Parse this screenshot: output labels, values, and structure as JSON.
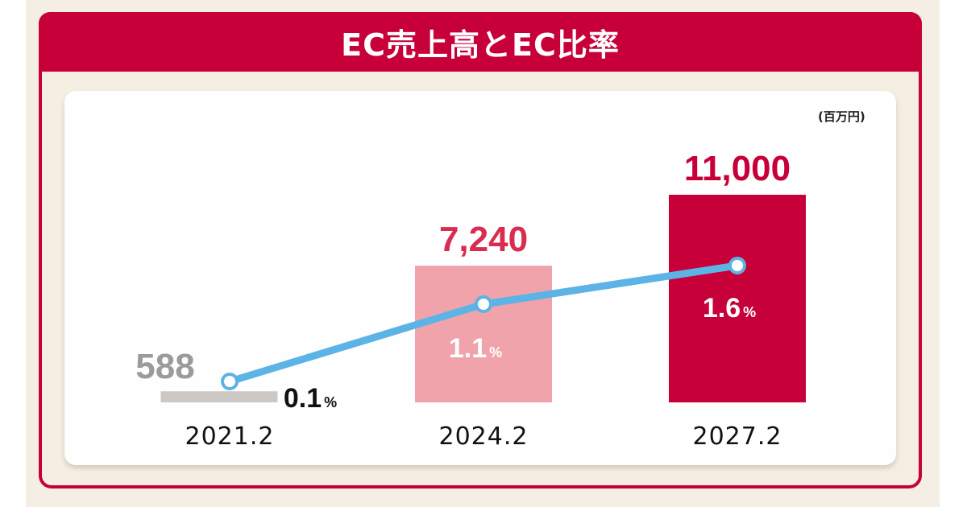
{
  "title": "EC売上高とEC比率",
  "chart_data": {
    "type": "bar",
    "title": "EC売上高とEC比率",
    "unit": "(百万円)",
    "categories": [
      "2021.2",
      "2024.2",
      "2027.2"
    ],
    "series": [
      {
        "type": "bar",
        "values": [
          588,
          7240,
          11000
        ],
        "labels": [
          "588",
          "7,240",
          "11,000"
        ],
        "colors": [
          "#cdc8c6",
          "#f0a3ab",
          "#c8003a"
        ],
        "label_colors": [
          "#9c9a9a",
          "#d92c4f",
          "#c8003a"
        ]
      },
      {
        "type": "line",
        "values": [
          0.1,
          1.1,
          1.6
        ],
        "labels": [
          "0.1",
          "1.1",
          "1.6"
        ],
        "suffix": "%",
        "color": "#5bb4e5"
      }
    ],
    "grid": false
  }
}
